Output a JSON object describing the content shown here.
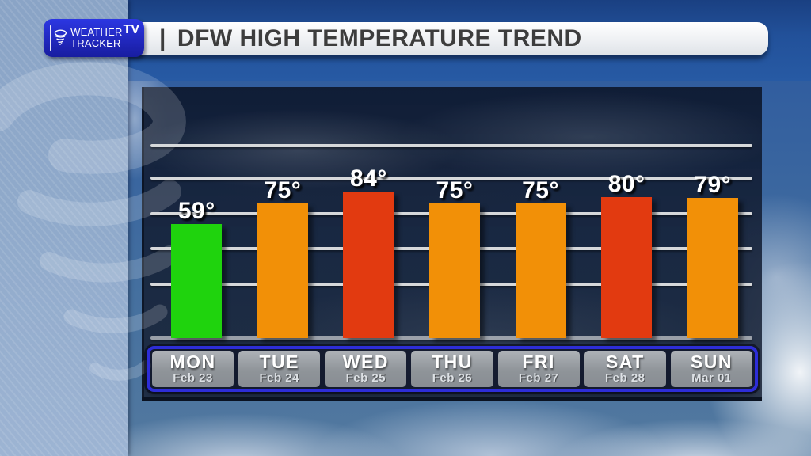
{
  "logo": {
    "line1": "WEATHER",
    "line2": "TRACKER",
    "badge": "TV"
  },
  "header": {
    "divider": "|",
    "title": "DFW HIGH TEMPERATURE TREND"
  },
  "chart_data": {
    "type": "bar",
    "title": "DFW HIGH TEMPERATURE TREND",
    "categories": [
      "MON",
      "TUE",
      "WED",
      "THU",
      "FRI",
      "SAT",
      "SUN"
    ],
    "category_dates": [
      "Feb 23",
      "Feb 24",
      "Feb 25",
      "Feb 26",
      "Feb 27",
      "Feb 28",
      "Mar 01"
    ],
    "values": [
      59,
      75,
      84,
      75,
      75,
      80,
      79
    ],
    "value_labels": [
      "59°",
      "75°",
      "84°",
      "75°",
      "75°",
      "80°",
      "79°"
    ],
    "bar_colors": [
      "#1fd30d",
      "#f29007",
      "#e23a10",
      "#f29007",
      "#f29007",
      "#e23a10",
      "#f29007"
    ],
    "unit": "°F",
    "xlabel": "",
    "ylabel": "",
    "grid": true,
    "legend": false,
    "gridline_count": 6
  },
  "colors": {
    "bar_green": "#1fd30d",
    "bar_orange": "#f29007",
    "bar_red": "#e23a10",
    "logo_blue": "#2230cf",
    "day_strip_blue": "#2d2dd8",
    "header_band_blue": "#22519a",
    "gridline_gray": "#d6d8da"
  }
}
